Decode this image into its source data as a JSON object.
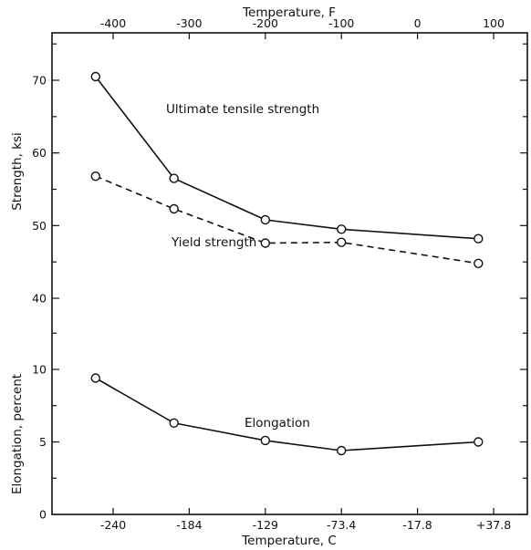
{
  "chart_data": {
    "type": "line",
    "x_top": {
      "label": "Temperature, F",
      "ticks": [
        -400,
        -300,
        -200,
        -100,
        0,
        100
      ],
      "tick_labels": [
        "-400",
        "-300",
        "-200",
        "-100",
        "0",
        "100"
      ],
      "range": [
        -440,
        140
      ]
    },
    "x_bottom": {
      "label": "Temperature, C",
      "tick_labels": [
        "-240",
        "-184",
        "-129",
        "-73.4",
        "-17.8",
        "+37.8"
      ],
      "tick_positions_f": [
        -400,
        -300,
        -200,
        -100,
        0,
        100
      ]
    },
    "upper_panel": {
      "ylabel": "Strength, ksi",
      "ylim": [
        35,
        75
      ],
      "yticks": [
        40,
        50,
        60,
        70
      ],
      "series": [
        {
          "name": "Ultimate tensile strength",
          "style": "solid",
          "x_f": [
            -423,
            -320,
            -200,
            -100,
            80
          ],
          "y": [
            70.5,
            56.5,
            50.8,
            49.5,
            48.2
          ]
        },
        {
          "name": "Yield strength",
          "style": "dashed",
          "x_f": [
            -423,
            -320,
            -200,
            -100,
            80
          ],
          "y": [
            56.8,
            52.3,
            47.6,
            47.7,
            44.8
          ]
        }
      ]
    },
    "lower_panel": {
      "ylabel": "Elongation, percent",
      "ylim": [
        0,
        12
      ],
      "yticks": [
        0,
        5,
        10
      ],
      "series": [
        {
          "name": "Elongation",
          "style": "solid",
          "x_f": [
            -423,
            -320,
            -200,
            -100,
            80
          ],
          "y": [
            9.4,
            6.3,
            5.1,
            4.4,
            5.0
          ]
        }
      ]
    }
  }
}
